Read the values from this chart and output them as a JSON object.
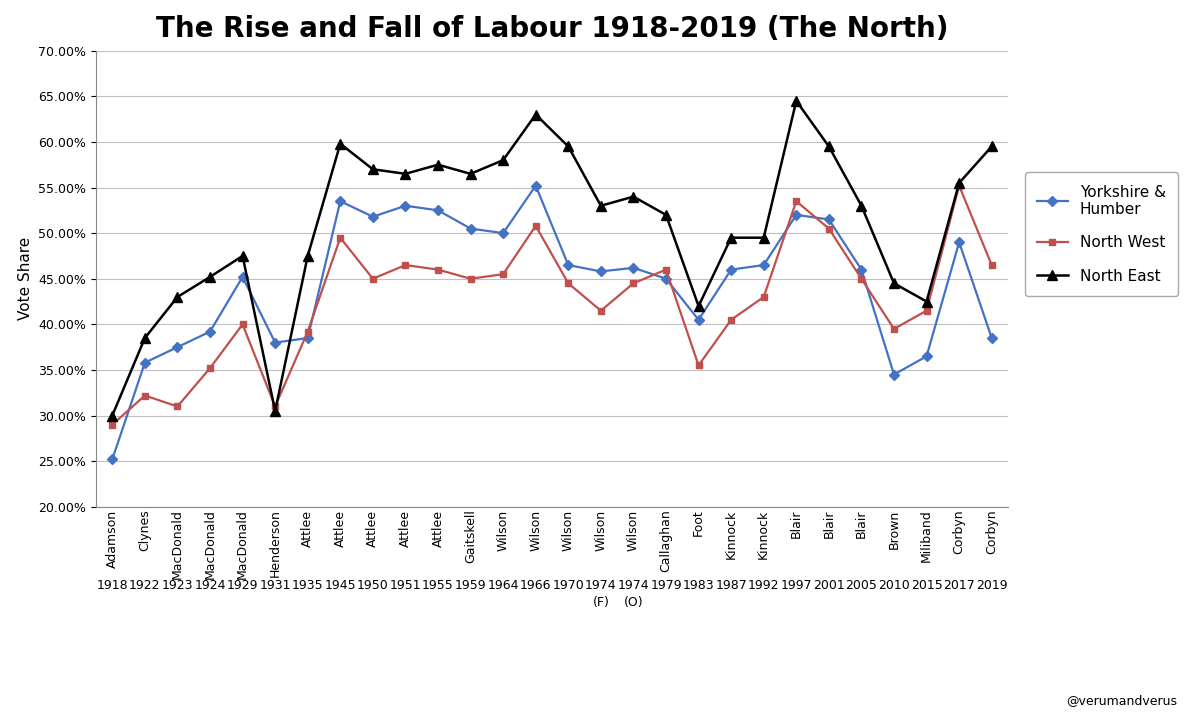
{
  "title": "The Rise and Fall of Labour 1918-2019 (The North)",
  "ylabel": "Vote Share",
  "leaders": [
    "Adamson",
    "Clynes",
    "MacDonald",
    "MacDonald",
    "MacDonald",
    "Henderson",
    "Attlee",
    "Attlee",
    "Attlee",
    "Attlee",
    "Attlee",
    "Gaitskell",
    "Wilson",
    "Wilson",
    "Wilson",
    "Wilson",
    "Wilson",
    "Callaghan",
    "Foot",
    "Kinnock",
    "Kinnock",
    "Blair",
    "Blair",
    "Blair",
    "Brown",
    "Miliband",
    "Corbyn",
    "Corbyn"
  ],
  "years": [
    "1918",
    "1922",
    "1923",
    "1924",
    "1929",
    "1931",
    "1935",
    "1945",
    "1950",
    "1951",
    "1955",
    "1959",
    "1964",
    "1966",
    "1970",
    "1974",
    "1974",
    "1979",
    "1983",
    "1987",
    "1992",
    "1997",
    "2001",
    "2005",
    "2010",
    "2015",
    "2017",
    "2019"
  ],
  "year_suffix": [
    "",
    "",
    "",
    "",
    "",
    "",
    "",
    "",
    "",
    "",
    "",
    "",
    "",
    "",
    "",
    "(F)",
    "(O)",
    "",
    "",
    "",
    "",
    "",
    "",
    "",
    "",
    "",
    "",
    ""
  ],
  "yorkshire": [
    0.252,
    0.358,
    0.375,
    0.392,
    0.452,
    0.38,
    0.385,
    0.535,
    0.518,
    0.53,
    0.525,
    0.505,
    0.5,
    0.552,
    0.465,
    0.458,
    0.462,
    0.45,
    0.405,
    0.46,
    0.465,
    0.52,
    0.515,
    0.46,
    0.345,
    0.365,
    0.49,
    0.385
  ],
  "northwest": [
    0.29,
    0.322,
    0.31,
    0.352,
    0.4,
    0.31,
    0.392,
    0.495,
    0.45,
    0.465,
    0.46,
    0.45,
    0.455,
    0.508,
    0.445,
    0.415,
    0.445,
    0.46,
    0.355,
    0.405,
    0.43,
    0.535,
    0.505,
    0.45,
    0.395,
    0.415,
    0.552,
    0.465
  ],
  "northeast": [
    0.3,
    0.385,
    0.43,
    0.452,
    0.475,
    0.305,
    0.475,
    0.598,
    0.57,
    0.565,
    0.575,
    0.565,
    0.58,
    0.63,
    0.595,
    0.53,
    0.54,
    0.52,
    0.42,
    0.495,
    0.495,
    0.645,
    0.595,
    0.53,
    0.445,
    0.425,
    0.555,
    0.595
  ],
  "yorkshire_color": "#4472C4",
  "northwest_color": "#C0504D",
  "northeast_color": "#000000",
  "bg_color": "#FFFFFF",
  "grid_color": "#C0C0C0",
  "ylim_min": 0.2,
  "ylim_max": 0.7,
  "yticks": [
    0.2,
    0.25,
    0.3,
    0.35,
    0.4,
    0.45,
    0.5,
    0.55,
    0.6,
    0.65,
    0.7
  ],
  "title_fontsize": 20,
  "axis_label_fontsize": 11,
  "tick_fontsize": 9,
  "legend_fontsize": 11,
  "twitter_color": "#1DA1F2",
  "watermark_text": "@verumandverus",
  "watermark_bg": "#ADFF2F"
}
